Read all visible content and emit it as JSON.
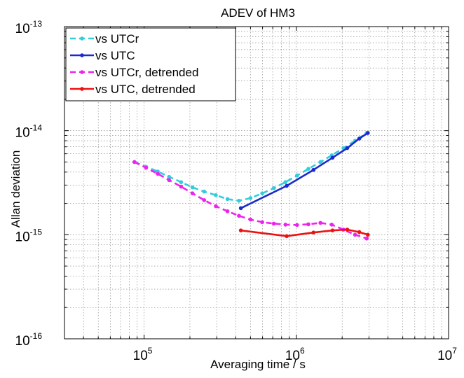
{
  "chart_data": {
    "type": "line",
    "title": "ADEV of HM3",
    "xlabel": "Averaging time / s",
    "ylabel": "Allan deviation",
    "xscale": "log",
    "yscale": "log",
    "xlim": [
      30000,
      10000000
    ],
    "ylim": [
      1e-16,
      1e-13
    ],
    "grid": true,
    "legend_position": "top-left",
    "x_ticks": [
      {
        "value": 100000,
        "base": "10",
        "exp": "5"
      },
      {
        "value": 1000000,
        "base": "10",
        "exp": "6"
      },
      {
        "value": 10000000,
        "base": "10",
        "exp": "7"
      }
    ],
    "y_ticks": [
      {
        "value": 1e-16,
        "base": "10",
        "exp": "-16"
      },
      {
        "value": 1e-15,
        "base": "10",
        "exp": "-15"
      },
      {
        "value": 1e-14,
        "base": "10",
        "exp": "-14"
      },
      {
        "value": 1e-13,
        "base": "10",
        "exp": "-13"
      }
    ],
    "series": [
      {
        "name": "vs UTCr",
        "color": "#33ccdd",
        "style": "dashed",
        "marker": "dot",
        "x": [
          86400,
          103000,
          123000,
          146000,
          175000,
          208000,
          248000,
          296000,
          353000,
          420000,
          500000,
          597000,
          711000,
          848000,
          1010000,
          1200000,
          1440000,
          1710000,
          2040000,
          2430000,
          2900000
        ],
        "y": [
          5e-15,
          4.5e-15,
          4.05e-15,
          3.6e-15,
          3.2e-15,
          2.85e-15,
          2.6e-15,
          2.4e-15,
          2.2e-15,
          2.12e-15,
          2.25e-15,
          2.5e-15,
          2.8e-15,
          3.2e-15,
          3.7e-15,
          4.3e-15,
          5e-15,
          5.8e-15,
          6.8e-15,
          8e-15,
          9.5e-15
        ]
      },
      {
        "name": "vs UTC",
        "color": "#1a2acc",
        "style": "solid",
        "marker": "dot",
        "x": [
          432000,
          864000,
          1296000,
          1728000,
          2160000,
          2592000,
          2950000
        ],
        "y": [
          1.8e-15,
          2.95e-15,
          4.2e-15,
          5.5e-15,
          6.8e-15,
          8.4e-15,
          9.5e-15
        ]
      },
      {
        "name": "vs UTCr, detrended",
        "color": "#ee22ee",
        "style": "dashed",
        "marker": "dot",
        "x": [
          86400,
          103000,
          123000,
          146000,
          175000,
          208000,
          248000,
          296000,
          353000,
          420000,
          500000,
          597000,
          711000,
          848000,
          1010000,
          1200000,
          1440000,
          1710000,
          2040000,
          2430000,
          2900000
        ],
        "y": [
          5e-15,
          4.4e-15,
          3.85e-15,
          3.35e-15,
          2.9e-15,
          2.5e-15,
          2.15e-15,
          1.88e-15,
          1.68e-15,
          1.52e-15,
          1.4e-15,
          1.32e-15,
          1.28e-15,
          1.25e-15,
          1.24e-15,
          1.26e-15,
          1.3e-15,
          1.25e-15,
          1.12e-15,
          1e-15,
          9.2e-16
        ]
      },
      {
        "name": "vs UTC, detrended",
        "color": "#ee1111",
        "style": "solid",
        "marker": "dot",
        "x": [
          432000,
          864000,
          1296000,
          1728000,
          2160000,
          2592000,
          2950000
        ],
        "y": [
          1.1e-15,
          9.7e-16,
          1.05e-15,
          1.1e-15,
          1.12e-15,
          1.06e-15,
          1e-15
        ]
      }
    ]
  }
}
